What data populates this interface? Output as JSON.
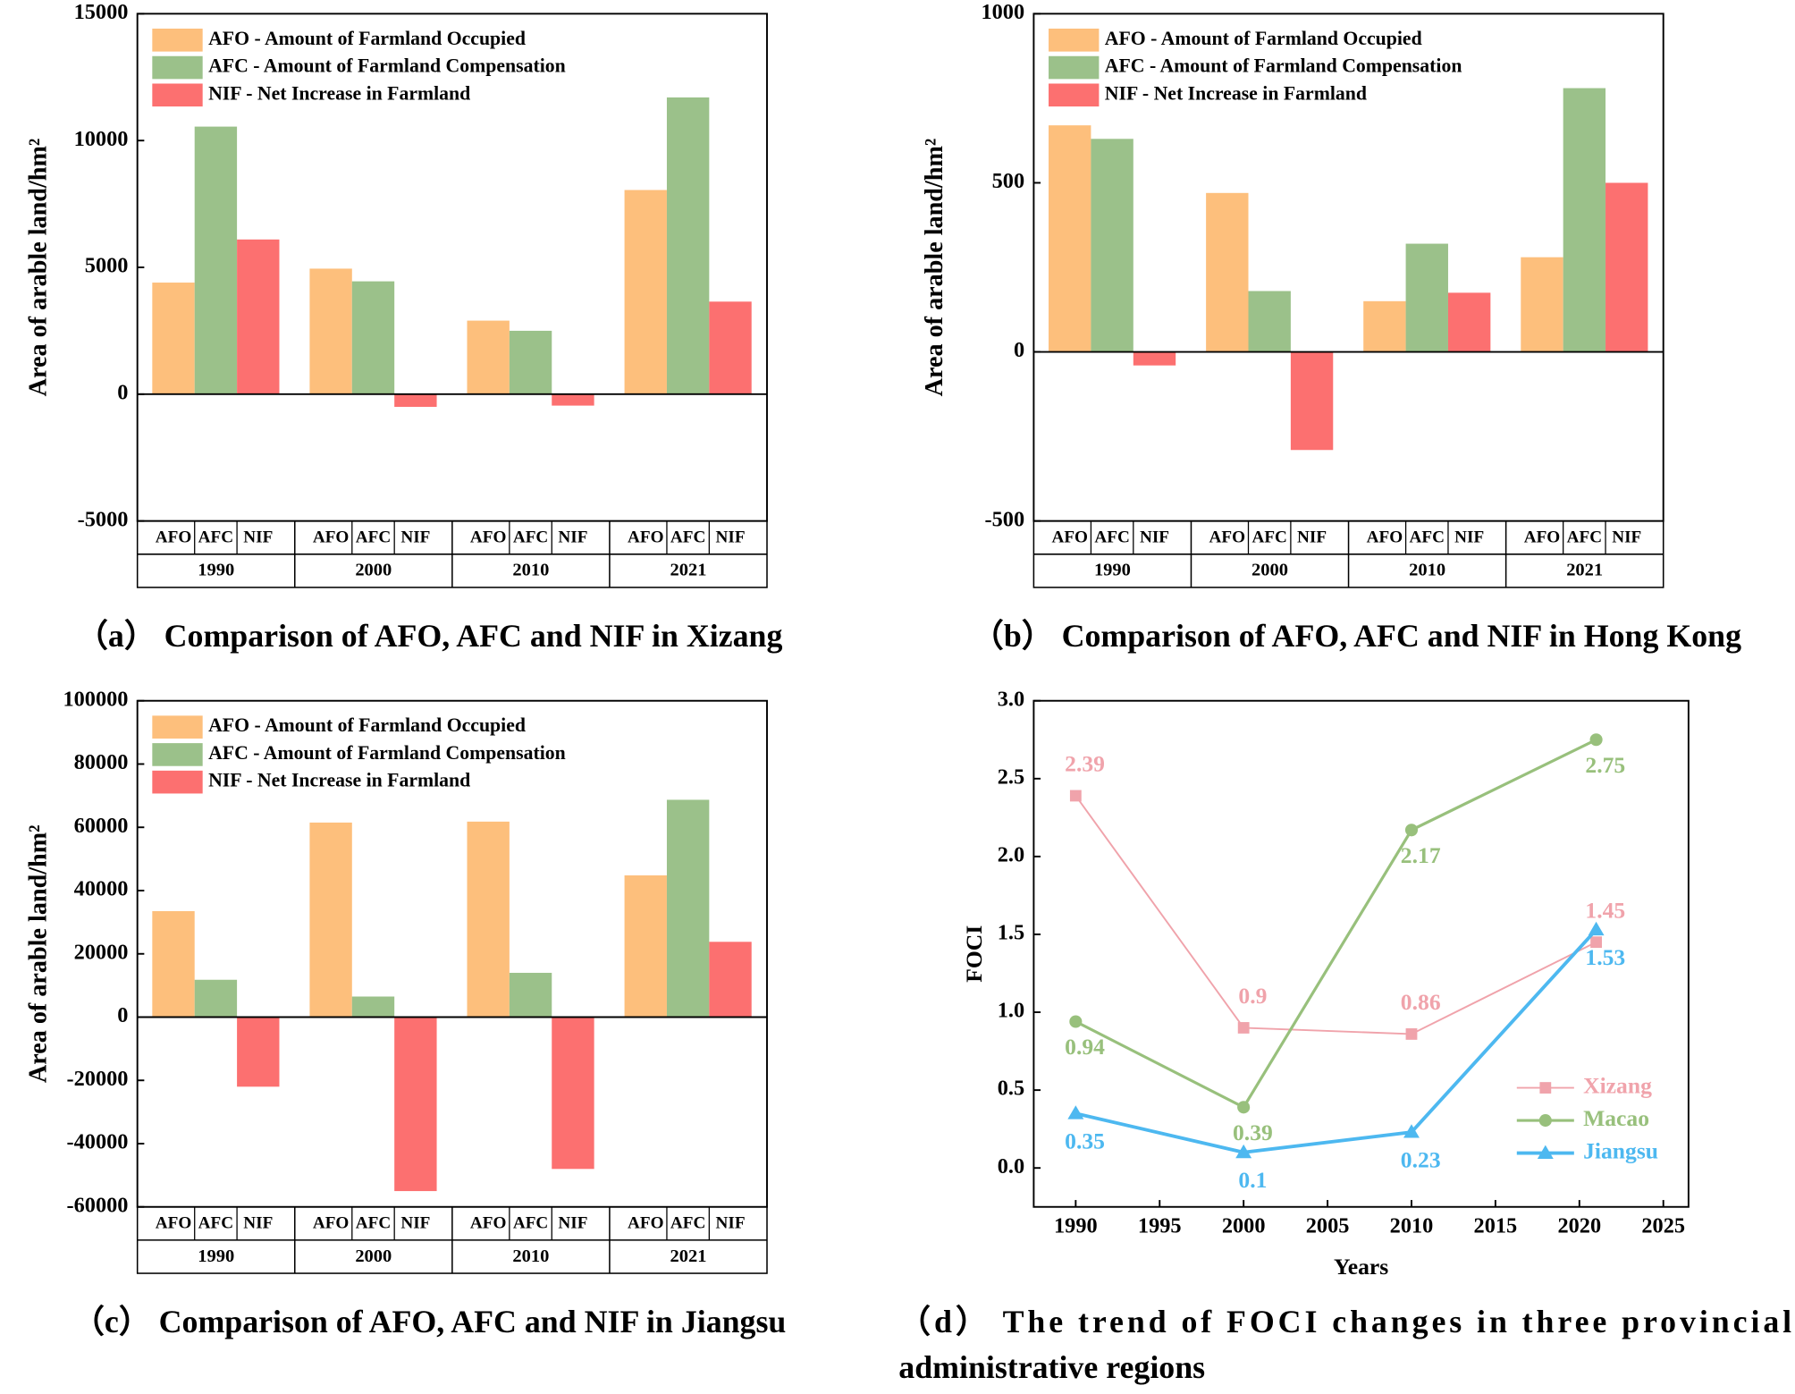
{
  "chart_data": [
    {
      "type": "bar",
      "caption": [
        "（a） Comparison of AFO, AFC and NIF in Xizang"
      ],
      "ylabel": "Area of arable land/hm²",
      "categories": [
        "1990",
        "2000",
        "2010",
        "2021"
      ],
      "subcategories": [
        "AFO",
        "AFC",
        "NIF"
      ],
      "series": [
        {
          "name": "AFO - Amount of Farmland Occupied",
          "color": "#fdbf7c",
          "values": [
            4400,
            4950,
            2900,
            8050
          ]
        },
        {
          "name": "AFC - Amount of Farmland Compensation",
          "color": "#9bc18a",
          "values": [
            10550,
            4450,
            2500,
            11700
          ]
        },
        {
          "name": "NIF  -  Net Increase in Farmland",
          "color": "#fc7070",
          "values": [
            6100,
            -500,
            -450,
            3650
          ]
        }
      ],
      "ylim": [
        -5000,
        15000
      ],
      "yticks": [
        -5000,
        0,
        5000,
        10000,
        15000
      ]
    },
    {
      "type": "bar",
      "caption": [
        "（b） Comparison of AFO, AFC and NIF in Hong Kong"
      ],
      "ylabel": "Area of arable land/hm²",
      "categories": [
        "1990",
        "2000",
        "2010",
        "2021"
      ],
      "subcategories": [
        "AFO",
        "AFC",
        "NIF"
      ],
      "series": [
        {
          "name": "AFO - Amount of Farmland Occupied",
          "color": "#fdbf7c",
          "values": [
            670,
            470,
            150,
            280
          ]
        },
        {
          "name": "AFC - Amount of Farmland Compensation",
          "color": "#9bc18a",
          "values": [
            630,
            180,
            320,
            780
          ]
        },
        {
          "name": "NIF  -  Net Increase in Farmland",
          "color": "#fc7070",
          "values": [
            -40,
            -290,
            175,
            500
          ]
        }
      ],
      "ylim": [
        -500,
        1000
      ],
      "yticks": [
        -500,
        0,
        500,
        1000
      ]
    },
    {
      "type": "bar",
      "caption": [
        "（c） Comparison of AFO, AFC and NIF in Jiangsu"
      ],
      "ylabel": "Area of arable land/hm²",
      "categories": [
        "1990",
        "2000",
        "2010",
        "2021"
      ],
      "subcategories": [
        "AFO",
        "AFC",
        "NIF"
      ],
      "series": [
        {
          "name": "AFO - Amount of Farmland Occupied",
          "color": "#fdbf7c",
          "values": [
            33500,
            61500,
            61800,
            44800
          ]
        },
        {
          "name": "AFC - Amount of Farmland Compensation",
          "color": "#9bc18a",
          "values": [
            11800,
            6500,
            14000,
            68700
          ]
        },
        {
          "name": "NIF  -  Net Increase in Farmland",
          "color": "#fc7070",
          "values": [
            -22000,
            -55000,
            -48000,
            23800
          ]
        }
      ],
      "ylim": [
        -60000,
        100000
      ],
      "yticks": [
        -60000,
        -40000,
        -20000,
        0,
        20000,
        40000,
        60000,
        80000,
        100000
      ]
    },
    {
      "type": "line",
      "caption": [
        "（d） The trend of FOCI changes in three provincial",
        "administrative regions"
      ],
      "xlabel": "Years",
      "ylabel": "FOCI",
      "x": [
        1990,
        2000,
        2010,
        2021
      ],
      "series": [
        {
          "name": "Xizang",
          "color": "#f0a3ab",
          "marker": "square",
          "values": [
            2.39,
            0.9,
            0.86,
            1.45
          ]
        },
        {
          "name": "Macao",
          "color": "#98c07c",
          "marker": "circle",
          "values": [
            0.94,
            0.39,
            2.17,
            2.75
          ]
        },
        {
          "name": "Jiangsu",
          "color": "#4db8f0",
          "marker": "triangle",
          "values": [
            0.35,
            0.1,
            0.23,
            1.53
          ]
        }
      ],
      "xlim": [
        1987.5,
        2026.5
      ],
      "xticks": [
        1990,
        1995,
        2000,
        2005,
        2010,
        2015,
        2020,
        2025
      ],
      "ylim": [
        -0.25,
        3.0
      ],
      "yticks": [
        {
          "value": 0,
          "label": "0.0"
        },
        0.5,
        {
          "value": 1,
          "label": "1.0"
        },
        1.5,
        {
          "value": 2,
          "label": "2.0"
        },
        2.5,
        {
          "value": 3,
          "label": "3.0"
        }
      ],
      "legend": "lower right"
    }
  ]
}
